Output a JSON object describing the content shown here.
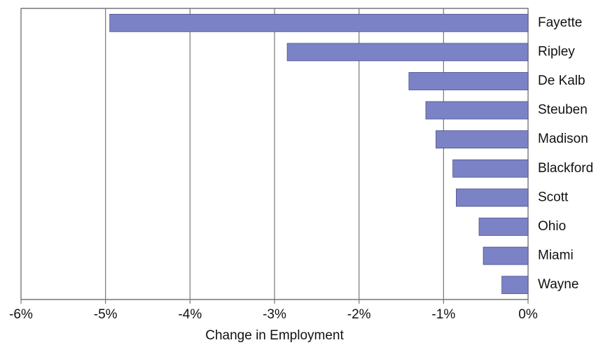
{
  "chart_data": {
    "type": "barh",
    "x_label": "Change in Employment",
    "categories": [
      "Fayette",
      "Ripley",
      "De Kalb",
      "Steuben",
      "Madison",
      "Blackford",
      "Scott",
      "Ohio",
      "Miami",
      "Wayne"
    ],
    "values": [
      -4.95,
      -2.85,
      -1.41,
      -1.21,
      -1.09,
      -0.89,
      -0.85,
      -0.58,
      -0.53,
      -0.31
    ],
    "color": "#7b83c6",
    "xlim": [
      -6,
      0
    ],
    "xticks": [
      {
        "value": -6,
        "label": "-6%"
      },
      {
        "value": -5,
        "label": "-5%"
      },
      {
        "value": -4,
        "label": "-4%"
      },
      {
        "value": -3,
        "label": "-3%"
      },
      {
        "value": -2,
        "label": "-2%"
      },
      {
        "value": -1,
        "label": "-1%"
      },
      {
        "value": 0,
        "label": "0%"
      }
    ],
    "grid": true
  }
}
